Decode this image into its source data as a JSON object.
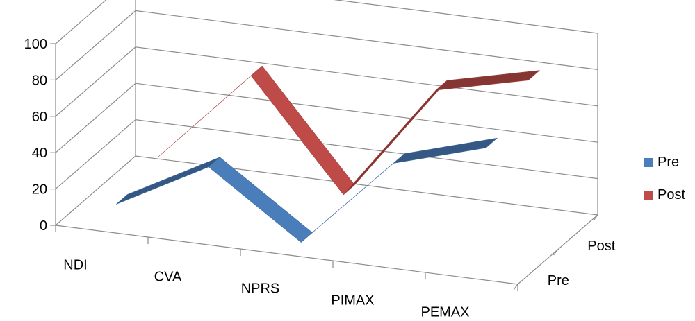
{
  "chart_data": {
    "type": "line",
    "style": "3d-ribbon",
    "title": "",
    "xlabel": "",
    "ylabel": "",
    "categories": [
      "NDI",
      "CVA",
      "NPRS",
      "PIMAX",
      "PEMAX"
    ],
    "series": [
      {
        "name": "Pre",
        "color": "#4a7ebb",
        "values": [
          8,
          35,
          0,
          50,
          65
        ]
      },
      {
        "name": "Post",
        "color": "#be4b48",
        "values": [
          14,
          65,
          6,
          70,
          82
        ]
      }
    ],
    "depth_labels": [
      "Pre",
      "Post"
    ],
    "ylim": [
      0,
      100
    ],
    "yticks": [
      "0",
      "20",
      "40",
      "60",
      "80",
      "100"
    ],
    "grid": true,
    "legend_position": "right"
  }
}
